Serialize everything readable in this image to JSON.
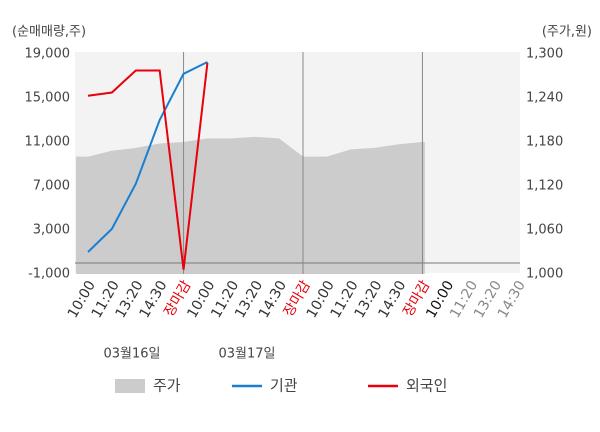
{
  "chart_data": {
    "type": "line",
    "y_label": "(순매매량,주)",
    "y2_label": "(주가,원)",
    "categories": [
      "10:00",
      "11:20",
      "13:20",
      "14:30",
      "장마감",
      "10:00",
      "11:20",
      "13:20",
      "14:30",
      "장마감",
      "10:00",
      "11:20",
      "13:20",
      "14:30",
      "장마감",
      "10:00",
      "11:20",
      "13:20",
      "14:30"
    ],
    "category_colors": [
      "#333",
      "#333",
      "#333",
      "#333",
      "#e8000b",
      "#333",
      "#333",
      "#333",
      "#333",
      "#e8000b",
      "#333",
      "#333",
      "#333",
      "#333",
      "#e8000b",
      "#111",
      "#888",
      "#888",
      "#888"
    ],
    "dates": [
      "03월16일",
      "03월17일"
    ],
    "series": [
      {
        "name": "주가",
        "type": "area",
        "axis": "y2",
        "color": "#cccccc",
        "values": [
          1160,
          1168,
          1172,
          1178,
          1180,
          1185,
          1185,
          1187,
          1185,
          1160,
          1160,
          1170,
          1172,
          1177,
          1180,
          null,
          null,
          null,
          null
        ]
      },
      {
        "name": "기관",
        "type": "line",
        "color": "#1a7fd0",
        "values": [
          1000,
          3100,
          7200,
          13000,
          17200,
          18270,
          null,
          null,
          null,
          null,
          null,
          null,
          null,
          null,
          null,
          null,
          null,
          null,
          null
        ]
      },
      {
        "name": "외국인",
        "type": "line",
        "color": "#e8000b",
        "values": [
          15200,
          15500,
          17500,
          17500,
          -600,
          18200,
          null,
          null,
          null,
          null,
          null,
          null,
          null,
          null,
          null,
          null,
          null,
          null,
          null
        ]
      }
    ],
    "ylim": [
      -1000,
      19000
    ],
    "yticks": [
      {
        "value": -1000,
        "label": "-1,000"
      },
      {
        "value": 3000,
        "label": "3,000"
      },
      {
        "value": 7000,
        "label": "7,000"
      },
      {
        "value": 11000,
        "label": "11,000"
      },
      {
        "value": 15000,
        "label": "15,000"
      },
      {
        "value": 19000,
        "label": "19,000"
      }
    ],
    "y2lim": [
      1000,
      1300
    ],
    "y2ticks": [
      {
        "value": 1000,
        "label": "1,000"
      },
      {
        "value": 1060,
        "label": "1,060"
      },
      {
        "value": 1120,
        "label": "1,120"
      },
      {
        "value": 1180,
        "label": "1,180"
      },
      {
        "value": 1240,
        "label": "1,240"
      },
      {
        "value": 1300,
        "label": "1,300"
      }
    ]
  }
}
